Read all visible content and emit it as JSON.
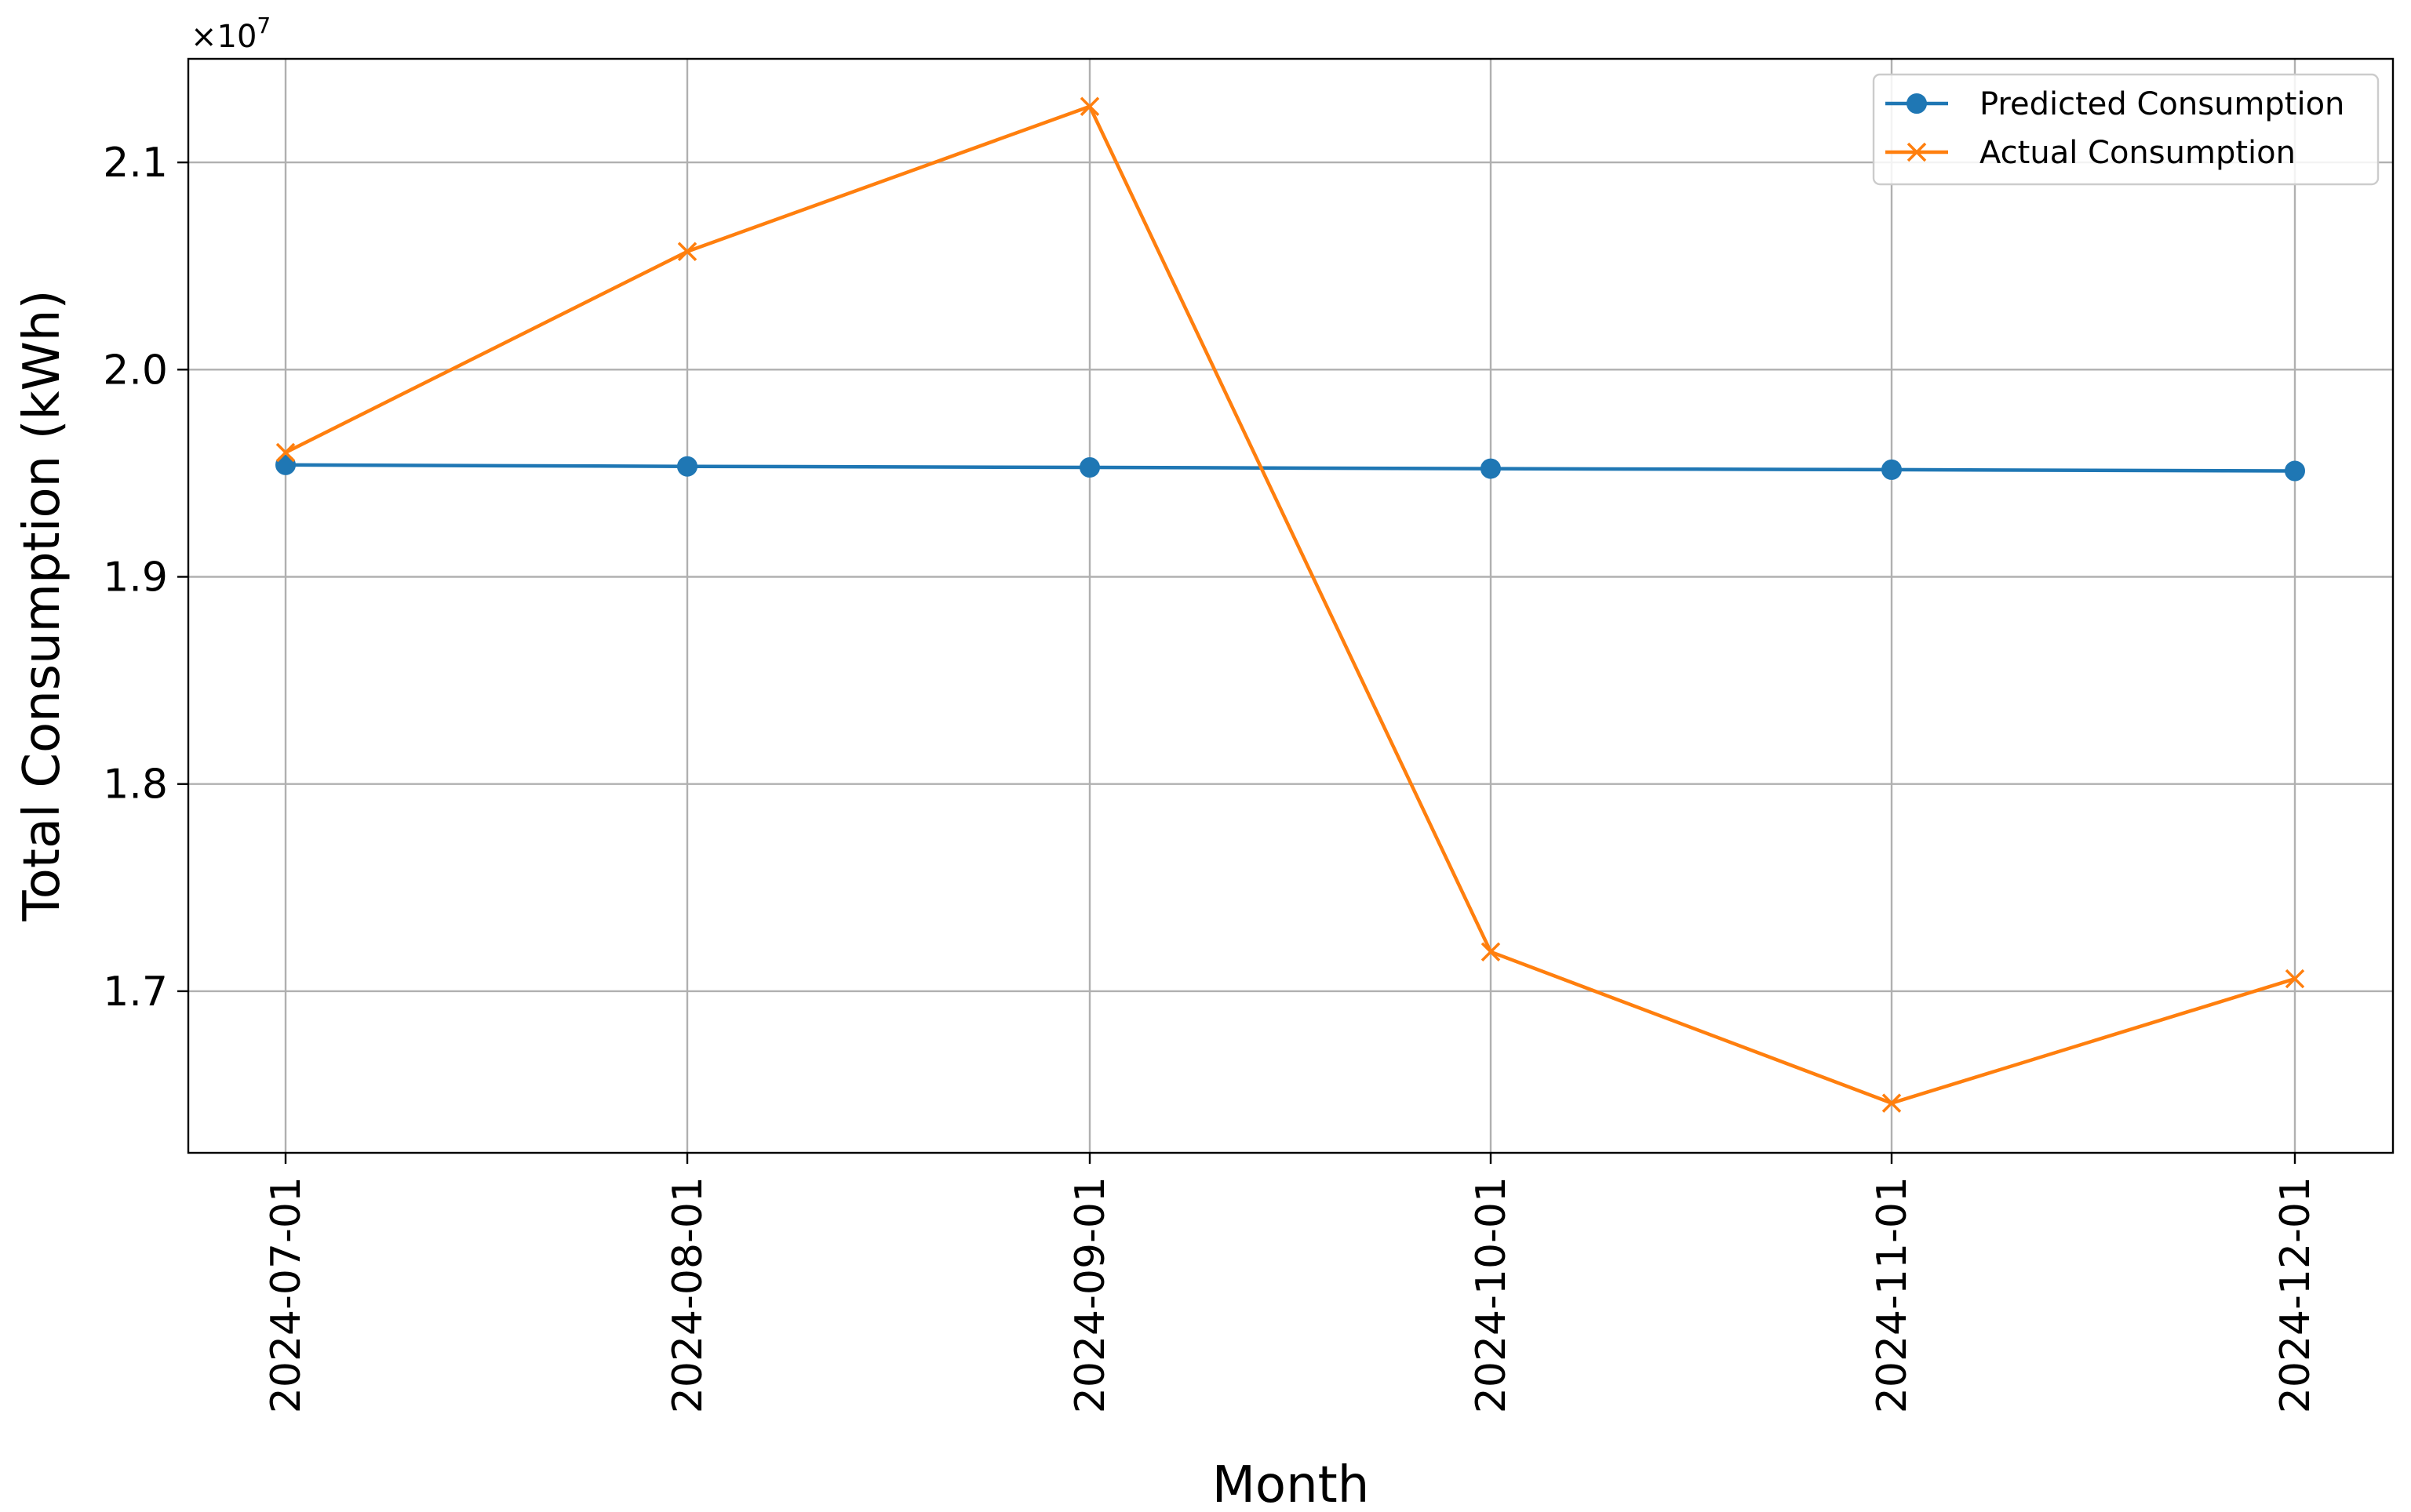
{
  "chart_data": {
    "type": "line",
    "title": "",
    "xlabel": "Month",
    "ylabel": "Total Consumption (kWh)",
    "y_offset_label": "×10",
    "y_offset_exponent": "7",
    "categories": [
      "2024-07-01",
      "2024-08-01",
      "2024-09-01",
      "2024-10-01",
      "2024-11-01",
      "2024-12-01"
    ],
    "yticks": [
      17000000,
      18000000,
      19000000,
      20000000,
      21000000
    ],
    "ytick_labels": [
      "1.7",
      "1.8",
      "1.9",
      "2.0",
      "2.1"
    ],
    "ylim": [
      16220000,
      21500000
    ],
    "grid": true,
    "legend_position": "top-right",
    "series": [
      {
        "name": "Predicted Consumption",
        "color": "#1f77b4",
        "marker": "circle",
        "values": [
          19540000,
          19533000,
          19528000,
          19522000,
          19517000,
          19511000
        ]
      },
      {
        "name": "Actual Consumption",
        "color": "#ff7f0e",
        "marker": "x",
        "values": [
          19600000,
          20570000,
          21270000,
          17190000,
          16460000,
          17060000
        ]
      }
    ]
  }
}
